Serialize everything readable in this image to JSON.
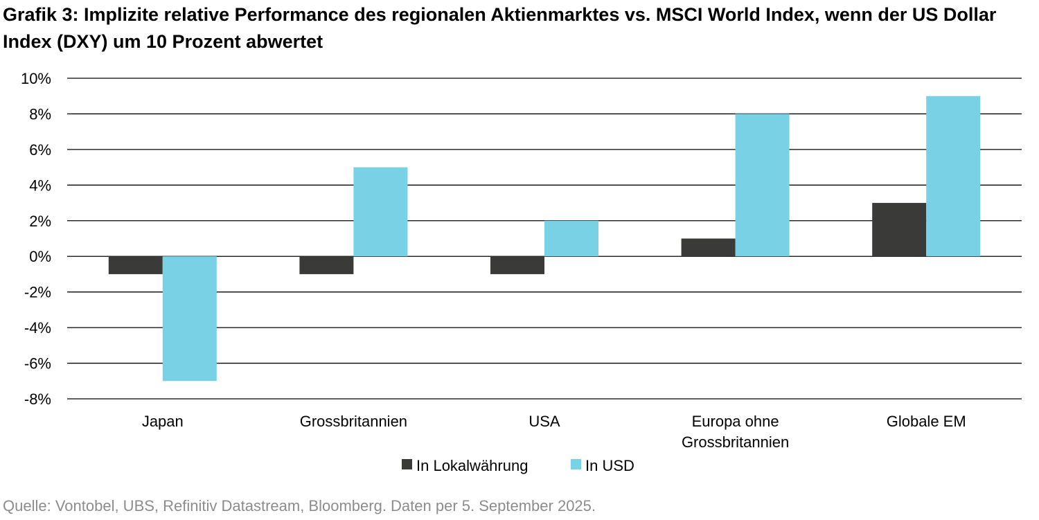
{
  "title": "Grafik 3: Implizite relative Performance des regionalen Aktienmarktes vs. MSCI World Index, wenn der US Dollar Index (DXY) um 10 Prozent abwertet",
  "source": "Quelle: Vontobel, UBS, Refinitiv Datastream, Bloomberg. Daten per 5. September 2025.",
  "colors": {
    "lokal": "#3a3b39",
    "usd": "#79d1e5",
    "grid": "#000000"
  },
  "chart_data": {
    "type": "bar",
    "categories": [
      [
        "Japan"
      ],
      [
        "Grossbritannien"
      ],
      [
        "USA"
      ],
      [
        "Europa ohne",
        "Grossbritannien"
      ],
      [
        "Globale EM"
      ]
    ],
    "series": [
      {
        "name": "In Lokalwährung",
        "values": [
          -1,
          -1,
          -1,
          1,
          3
        ]
      },
      {
        "name": "In USD",
        "values": [
          -7,
          5,
          2,
          8,
          9
        ]
      }
    ],
    "ylim": [
      -8,
      10
    ],
    "yticks": [
      10,
      8,
      6,
      4,
      2,
      0,
      -2,
      -4,
      -6,
      -8
    ],
    "ytick_labels": [
      "10%",
      "8%",
      "6%",
      "4%",
      "2%",
      "0%",
      "-2%",
      "-4%",
      "-6%",
      "-8%"
    ],
    "grid": true,
    "legend": "bottom-center"
  }
}
